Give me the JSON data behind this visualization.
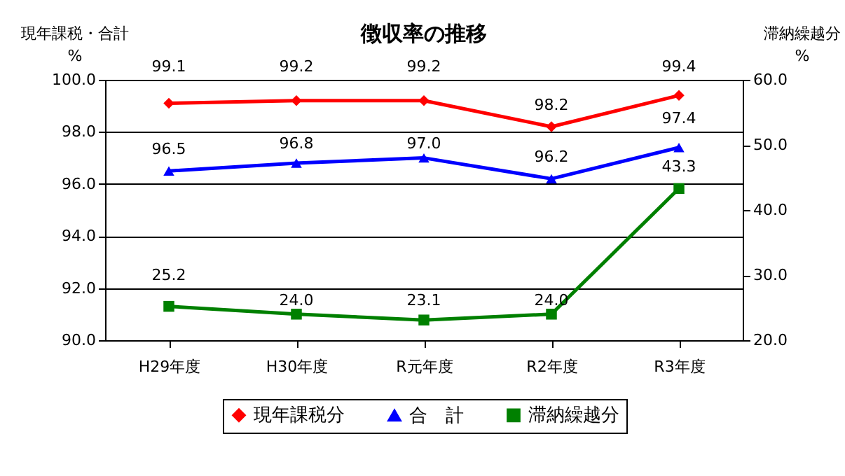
{
  "chart_data": {
    "type": "line",
    "title": "徴収率の推移",
    "ylabel": "現年課税・合計\n%",
    "y2label": "滞納繰越分\n%",
    "categories": [
      "H29年度",
      "H30年度",
      "R元年度",
      "R2年度",
      "R3年度"
    ],
    "series": [
      {
        "name": "現年課税分",
        "color": "#ff0000",
        "marker": "diamond",
        "values": [
          99.1,
          99.2,
          99.2,
          98.2,
          99.4
        ],
        "value_labels": [
          "99.1",
          "99.2",
          "99.2",
          "98.2",
          "99.4"
        ]
      },
      {
        "name": "合　計",
        "color": "#0000ff",
        "marker": "triangle",
        "values": [
          96.5,
          96.8,
          97.0,
          96.2,
          97.4
        ],
        "value_labels": [
          "96.5",
          "96.8",
          "97.0",
          "96.2",
          "97.4"
        ]
      },
      {
        "name": "滞納繰越分",
        "color": "#008000",
        "marker": "square",
        "axis": "y2",
        "values": [
          25.2,
          24.0,
          23.1,
          24.0,
          43.3
        ],
        "value_labels": [
          "25.2",
          "24.0",
          "23.1",
          "24.0",
          "43.3"
        ]
      }
    ],
    "ylim": [
      90,
      100
    ],
    "yticks": [
      {
        "value": 90,
        "label": "90.0"
      },
      {
        "value": 92,
        "label": "92.0"
      },
      {
        "value": 94,
        "label": "94.0"
      },
      {
        "value": 96,
        "label": "96.0"
      },
      {
        "value": 98,
        "label": "98.0"
      },
      {
        "value": 100,
        "label": "100.0"
      }
    ],
    "y2lim": [
      20,
      60
    ],
    "y2ticks": [
      {
        "value": 20,
        "label": "20.0"
      },
      {
        "value": 30,
        "label": "30.0"
      },
      {
        "value": 40,
        "label": "40.0"
      },
      {
        "value": 50,
        "label": "50.0"
      },
      {
        "value": 60,
        "label": "60.0"
      }
    ],
    "grid": "y",
    "legend": "bottom",
    "data_labels": true
  }
}
